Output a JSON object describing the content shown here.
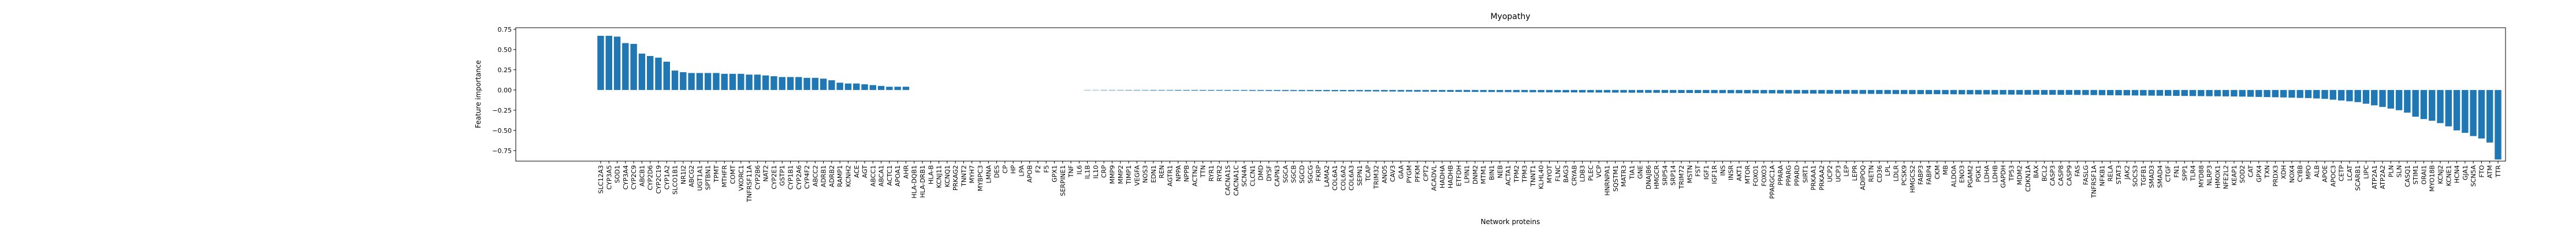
{
  "chart_data": {
    "type": "bar",
    "title": "Myopathy",
    "xlabel": "Network proteins",
    "ylabel": "Feature importance",
    "color": "#1f77b4",
    "grid": false,
    "ylim": [
      -0.88,
      0.77
    ],
    "yticks": [
      {
        "value": -0.75,
        "label": "−0.75"
      },
      {
        "value": -0.5,
        "label": "−0.50"
      },
      {
        "value": -0.25,
        "label": "−0.25"
      },
      {
        "value": 0,
        "label": "0.00"
      },
      0.25,
      {
        "value": 0.5,
        "label": "0.50"
      },
      0.75
    ],
    "categories": [
      "SLC12A3",
      "CYP3A5",
      "SOD1",
      "CYP3A4",
      "CYP2C9",
      "ABCB1",
      "CYP2D6",
      "CYP2C19",
      "CYP1A2",
      "SLCO1B1",
      "NR1I2",
      "ABCG2",
      "UGT1A1",
      "SPTBN1",
      "TPMT",
      "MTHFR",
      "COMT",
      "VKORC1",
      "TNFRSF11A",
      "CYP2B6",
      "NAT2",
      "CYP2E1",
      "GSTP1",
      "CYP1B1",
      "CYP2A6",
      "CYP4F2",
      "ABCC2",
      "ADRB1",
      "ADRB2",
      "RAMP1",
      "KCNH2",
      "ACE",
      "AGT",
      "ABCC1",
      "ABCA1",
      "ACTC1",
      "APOA1",
      "AHR",
      "HLA-DQB1",
      "HLA-DRB1",
      "HLA-B",
      "KCNJ11",
      "KCNQ1",
      "PRKAG2",
      "TNNT2",
      "MYH7",
      "MYBPC3",
      "LMNA",
      "DES",
      "CP",
      "HP",
      "LPA",
      "APOB",
      "F2",
      "F5",
      "GPX1",
      "SERPINE1",
      "TNF",
      "IL6",
      "IL1B",
      "IL10",
      "CRP",
      "MMP9",
      "MMP2",
      "TIMP1",
      "VEGFA",
      "NOS3",
      "EDN1",
      "REN",
      "AGTR1",
      "NPPA",
      "NPPB",
      "ACTN2",
      "TTN",
      "RYR1",
      "RYR2",
      "CACNA1S",
      "CACNA1C",
      "SCN4A",
      "CLCN1",
      "DMD",
      "DYSF",
      "CAPN3",
      "SGCA",
      "SGCB",
      "SGCD",
      "SGCG",
      "FKRP",
      "LAMA2",
      "COL6A1",
      "COL6A2",
      "COL6A3",
      "SEPN1",
      "TCAP",
      "TRIM32",
      "ANO5",
      "CAV3",
      "GAA",
      "PYGM",
      "PFKM",
      "CPT2",
      "ACADVL",
      "HADHA",
      "HADHB",
      "ETFDH",
      "LPIN1",
      "DNM2",
      "MTM1",
      "BIN1",
      "NEB",
      "ACTA1",
      "TPM2",
      "TPM3",
      "TNNT1",
      "KLHL40",
      "MYOT",
      "FLNC",
      "BAG3",
      "CRYAB",
      "LDB3",
      "PLEC",
      "VCP",
      "HNRNPA1",
      "SQSTM1",
      "MATR3",
      "TIA1",
      "GNE",
      "DNAJB6",
      "HMGCR",
      "SRP54",
      "SRP14",
      "TRIM72",
      "MSTN",
      "FST",
      "IGF1",
      "IGF1R",
      "INS",
      "INSR",
      "AKT1",
      "MTOR",
      "FOXO1",
      "FOXO3",
      "PPARGC1A",
      "PPARA",
      "PPARG",
      "PPARD",
      "SIRT1",
      "PRKAA1",
      "PRKAA2",
      "UCP2",
      "UCP3",
      "LEP",
      "LEPR",
      "ADIPOQ",
      "RETN",
      "CD36",
      "LPL",
      "LDLR",
      "PCSK9",
      "HMGCS2",
      "FABP3",
      "FABP4",
      "CKM",
      "MB",
      "ALDOA",
      "ENO3",
      "PGAM2",
      "PGK1",
      "LDHA",
      "LDHB",
      "GAPDH",
      "TP53",
      "MDM2",
      "CDKN1A",
      "BAX",
      "BCL2",
      "CASP3",
      "CASP8",
      "CASP9",
      "FAS",
      "FASLG",
      "TNFRSF1A",
      "NFKB1",
      "RELA",
      "STAT3",
      "JAK2",
      "SOCS3",
      "TGFB1",
      "SMAD3",
      "SMAD4",
      "CTGF",
      "FN1",
      "SPP1",
      "TLR4",
      "MYD88",
      "NLRP3",
      "HMOX1",
      "NFE2L2",
      "KEAP1",
      "SOD2",
      "CAT",
      "GPX4",
      "TXN",
      "PRDX3",
      "XDH",
      "NOX4",
      "CYBB",
      "MPO",
      "ALB",
      "APOE",
      "APOC3",
      "CETP",
      "LCAT",
      "SCARB1",
      "LIPC",
      "ATP2A1",
      "ATP2A2",
      "PLN",
      "SLN",
      "CASQ1",
      "STIM1",
      "ORAI1",
      "MYO18B",
      "KCNJ2",
      "KCNE1",
      "HCN4",
      "GJA1",
      "SCN5A",
      "FTO",
      "ATM",
      "TTR"
    ],
    "values": [
      0.67,
      0.67,
      0.66,
      0.58,
      0.57,
      0.45,
      0.42,
      0.4,
      0.35,
      0.24,
      0.22,
      0.21,
      0.21,
      0.21,
      0.21,
      0.2,
      0.2,
      0.2,
      0.19,
      0.19,
      0.18,
      0.17,
      0.16,
      0.16,
      0.16,
      0.15,
      0.15,
      0.14,
      0.12,
      0.09,
      0.08,
      0.08,
      0.07,
      0.06,
      0.05,
      0.04,
      0.04,
      0.04,
      0,
      0,
      0,
      0,
      0,
      0,
      0,
      0,
      0,
      0,
      0,
      0,
      0,
      0,
      0,
      0,
      0,
      0,
      0,
      0,
      0,
      -0.004,
      -0.004,
      -0.005,
      -0.005,
      -0.005,
      -0.006,
      -0.006,
      -0.006,
      -0.007,
      -0.007,
      -0.007,
      -0.008,
      -0.008,
      -0.008,
      -0.009,
      -0.009,
      -0.009,
      -0.01,
      -0.01,
      -0.01,
      -0.011,
      -0.011,
      -0.012,
      -0.012,
      -0.013,
      -0.013,
      -0.014,
      -0.014,
      -0.015,
      -0.015,
      -0.016,
      -0.016,
      -0.017,
      -0.017,
      -0.018,
      -0.018,
      -0.019,
      -0.019,
      -0.02,
      -0.02,
      -0.021,
      -0.021,
      -0.022,
      -0.022,
      -0.023,
      -0.023,
      -0.024,
      -0.024,
      -0.025,
      -0.025,
      -0.026,
      -0.026,
      -0.027,
      -0.027,
      -0.028,
      -0.028,
      -0.029,
      -0.029,
      -0.03,
      -0.03,
      -0.031,
      -0.031,
      -0.032,
      -0.032,
      -0.033,
      -0.033,
      -0.034,
      -0.034,
      -0.035,
      -0.035,
      -0.036,
      -0.036,
      -0.037,
      -0.037,
      -0.038,
      -0.038,
      -0.039,
      -0.039,
      -0.04,
      -0.04,
      -0.041,
      -0.041,
      -0.042,
      -0.042,
      -0.043,
      -0.043,
      -0.044,
      -0.044,
      -0.045,
      -0.045,
      -0.046,
      -0.046,
      -0.047,
      -0.047,
      -0.048,
      -0.048,
      -0.049,
      -0.049,
      -0.05,
      -0.05,
      -0.051,
      -0.051,
      -0.052,
      -0.052,
      -0.053,
      -0.053,
      -0.054,
      -0.054,
      -0.055,
      -0.055,
      -0.056,
      -0.056,
      -0.057,
      -0.057,
      -0.058,
      -0.058,
      -0.059,
      -0.059,
      -0.06,
      -0.06,
      -0.061,
      -0.062,
      -0.063,
      -0.064,
      -0.065,
      -0.066,
      -0.067,
      -0.068,
      -0.069,
      -0.07,
      -0.071,
      -0.072,
      -0.073,
      -0.074,
      -0.075,
      -0.076,
      -0.077,
      -0.078,
      -0.079,
      -0.08,
      -0.082,
      -0.084,
      -0.086,
      -0.088,
      -0.09,
      -0.092,
      -0.095,
      -0.098,
      -0.1,
      -0.105,
      -0.11,
      -0.12,
      -0.13,
      -0.14,
      -0.15,
      -0.17,
      -0.19,
      -0.21,
      -0.23,
      -0.25,
      -0.28,
      -0.33,
      -0.36,
      -0.38,
      -0.41,
      -0.45,
      -0.5,
      -0.53,
      -0.57,
      -0.6,
      -0.65,
      -0.86
    ]
  }
}
